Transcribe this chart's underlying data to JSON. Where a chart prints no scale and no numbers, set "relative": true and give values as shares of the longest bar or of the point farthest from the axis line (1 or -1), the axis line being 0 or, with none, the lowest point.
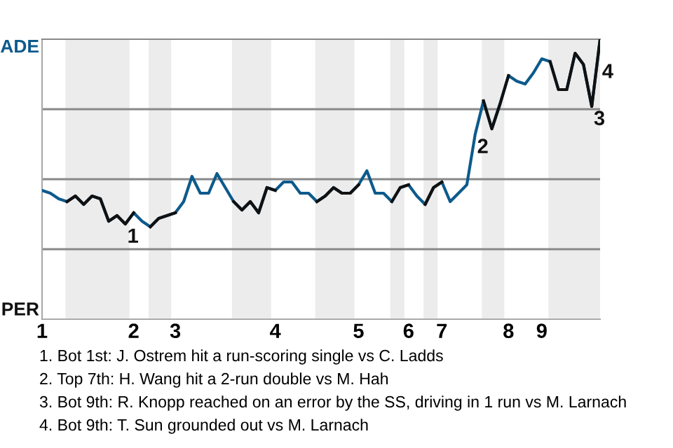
{
  "chart_data": {
    "type": "line",
    "relative": true,
    "categories": [
      "1",
      null,
      null,
      null,
      null,
      null,
      null,
      null,
      null,
      null,
      null,
      "2",
      null,
      null,
      null,
      null,
      "3",
      null,
      null,
      null,
      null,
      null,
      null,
      null,
      null,
      null,
      null,
      null,
      "4",
      null,
      null,
      null,
      null,
      null,
      null,
      null,
      null,
      null,
      "5",
      null,
      null,
      null,
      null,
      null,
      "6",
      null,
      null,
      null,
      "7",
      null,
      null,
      null,
      null,
      null,
      null,
      null,
      "8",
      null,
      null,
      null,
      "9",
      null,
      null,
      null,
      null,
      null,
      null,
      null
    ],
    "series": [
      {
        "color": "#0d5a8c",
        "values": [
          0.46,
          0.45,
          0.43,
          0.42,
          0.44,
          0.41,
          0.44,
          0.43,
          0.35,
          0.37,
          0.34,
          0.38,
          0.35,
          0.33,
          0.36,
          0.37,
          0.38,
          0.42,
          0.51,
          0.45,
          0.45,
          0.52,
          0.47,
          0.42,
          0.39,
          0.42,
          0.38,
          0.47,
          0.46,
          0.49,
          0.49,
          0.45,
          0.45,
          0.42,
          0.44,
          0.47,
          0.45,
          0.45,
          0.48,
          0.53,
          0.45,
          0.45,
          0.42,
          0.47,
          0.48,
          0.44,
          0.41,
          0.47,
          0.49,
          0.42,
          0.45,
          0.48,
          0.66,
          0.78,
          0.68,
          0.77,
          0.87,
          0.85,
          0.84,
          0.88,
          0.93,
          0.92,
          0.82,
          0.82,
          0.95,
          0.91,
          0.76,
          1.0
        ]
      },
      {
        "color": "#111111",
        "values": [
          null,
          null,
          null,
          0.42,
          0.44,
          0.41,
          0.44,
          0.43,
          0.35,
          0.37,
          0.34,
          0.38,
          null,
          0.33,
          0.36,
          0.37,
          0.38,
          null,
          null,
          null,
          null,
          null,
          null,
          0.42,
          0.39,
          0.42,
          0.38,
          0.47,
          0.46,
          null,
          null,
          null,
          null,
          0.42,
          0.44,
          0.47,
          0.45,
          0.45,
          0.48,
          null,
          null,
          null,
          0.42,
          0.47,
          0.48,
          null,
          0.41,
          0.47,
          0.49,
          null,
          null,
          null,
          null,
          0.78,
          0.68,
          0.77,
          0.87,
          null,
          null,
          null,
          null,
          0.92,
          0.82,
          0.82,
          0.95,
          0.91,
          0.76,
          1.0
        ]
      }
    ],
    "line_style": "solid",
    "ref_lines": [
      {
        "axis": "y",
        "value": 0.25,
        "color": "#888888"
      },
      {
        "axis": "y",
        "value": 0.5,
        "color": "#888888"
      },
      {
        "axis": "y",
        "value": 0.75,
        "color": "#888888"
      }
    ],
    "annotations": [
      "ADE",
      "PER",
      "4",
      {
        "text": "1",
        "y": 0.34
      },
      {
        "text": "2",
        "y": 0.66
      },
      {
        "text": "3",
        "y": 0.76
      },
      "1. Bot 1st: J. Ostrem hit a run-scoring single vs C. Ladds",
      "2. Top 7th: H. Wang hit a 2-run double vs M. Hah",
      "3. Bot 9th: R. Knopp reached on an error by the SS, driving in 1 run vs M. Larnach",
      "4. Bot 9th: T. Sun grounded out vs M. Larnach"
    ]
  }
}
